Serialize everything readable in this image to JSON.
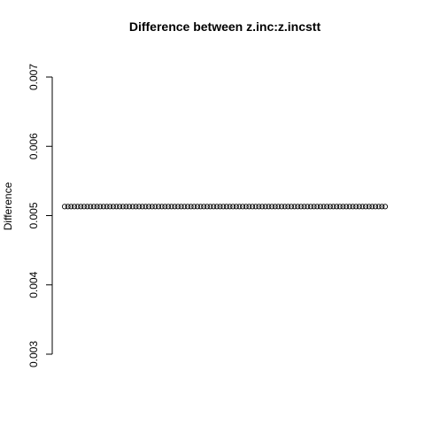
{
  "chart_data": {
    "type": "scatter",
    "title": "Difference between z.inc:z.incstt",
    "xlabel": "",
    "ylabel": "Difference",
    "ylim": [
      0.003,
      0.007
    ],
    "yticks": [
      "0.003",
      "0.004",
      "0.005",
      "0.006",
      "0.007"
    ],
    "x_axis_drawn": false,
    "grid": false,
    "marker": "open-circle",
    "marker_color": "#000000",
    "n_points": 100,
    "y_value": 0.00513,
    "series": [
      {
        "values": [
          0.00513,
          0.00513,
          0.00513,
          0.00513,
          0.00513,
          0.00513,
          0.00513,
          0.00513,
          0.00513,
          0.00513,
          0.00513,
          0.00513,
          0.00513,
          0.00513,
          0.00513,
          0.00513,
          0.00513,
          0.00513,
          0.00513,
          0.00513,
          0.00513,
          0.00513,
          0.00513,
          0.00513,
          0.00513,
          0.00513,
          0.00513,
          0.00513,
          0.00513,
          0.00513,
          0.00513,
          0.00513,
          0.00513,
          0.00513,
          0.00513,
          0.00513,
          0.00513,
          0.00513,
          0.00513,
          0.00513,
          0.00513,
          0.00513,
          0.00513,
          0.00513,
          0.00513,
          0.00513,
          0.00513,
          0.00513,
          0.00513,
          0.00513,
          0.00513,
          0.00513,
          0.00513,
          0.00513,
          0.00513,
          0.00513,
          0.00513,
          0.00513,
          0.00513,
          0.00513,
          0.00513,
          0.00513,
          0.00513,
          0.00513,
          0.00513,
          0.00513,
          0.00513,
          0.00513,
          0.00513,
          0.00513,
          0.00513,
          0.00513,
          0.00513,
          0.00513,
          0.00513,
          0.00513,
          0.00513,
          0.00513,
          0.00513,
          0.00513,
          0.00513,
          0.00513,
          0.00513,
          0.00513,
          0.00513,
          0.00513,
          0.00513,
          0.00513,
          0.00513,
          0.00513,
          0.00513,
          0.00513,
          0.00513,
          0.00513,
          0.00513,
          0.00513,
          0.00513,
          0.00513,
          0.00513,
          0.00513
        ]
      }
    ]
  }
}
